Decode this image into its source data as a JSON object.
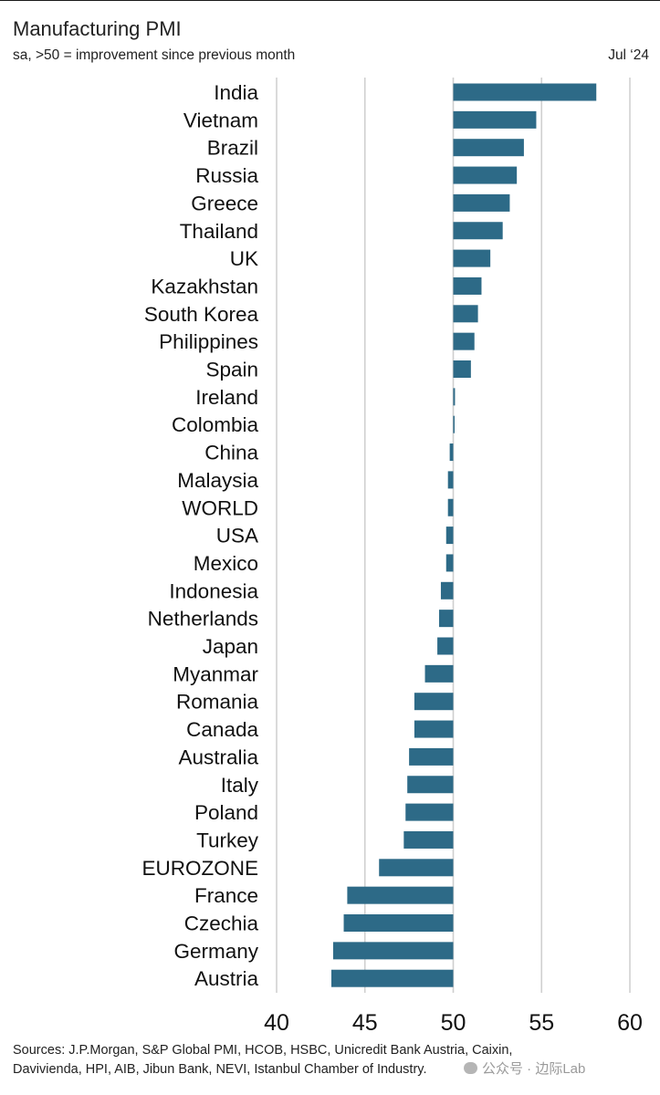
{
  "header": {
    "title": "Manufacturing PMI",
    "subtitle": "sa, >50 = improvement since previous month",
    "date": "Jul ‘24"
  },
  "footer": {
    "sources_line1": "Sources: J.P.Morgan, S&P Global PMI, HCOB, HSBC, Unicredit Bank Austria, Caixin,",
    "sources_line2": "Davivienda, HPI, AIB, Jibun Bank, NEVI, Istanbul Chamber of Industry.",
    "watermark": "公众号 · 边际Lab"
  },
  "colors": {
    "bar": "#2d6a87",
    "grid": "#d0d0d0",
    "baseline": "#cfcfcf"
  },
  "chart_data": {
    "type": "bar",
    "orientation": "horizontal",
    "title": "Manufacturing PMI",
    "subtitle": "sa, >50 = improvement since previous month",
    "baseline": 50,
    "xlim": [
      40,
      60
    ],
    "xticks": [
      40,
      45,
      50,
      55,
      60
    ],
    "xlabel": "",
    "ylabel": "",
    "grid": "vertical",
    "categories": [
      "India",
      "Vietnam",
      "Brazil",
      "Russia",
      "Greece",
      "Thailand",
      "UK",
      "Kazakhstan",
      "South Korea",
      "Philippines",
      "Spain",
      "Ireland",
      "Colombia",
      "China",
      "Malaysia",
      "WORLD",
      "USA",
      "Mexico",
      "Indonesia",
      "Netherlands",
      "Japan",
      "Myanmar",
      "Romania",
      "Canada",
      "Australia",
      "Italy",
      "Poland",
      "Turkey",
      "EUROZONE",
      "France",
      "Czechia",
      "Germany",
      "Austria"
    ],
    "values": [
      58.1,
      54.7,
      54.0,
      53.6,
      53.2,
      52.8,
      52.1,
      51.6,
      51.4,
      51.2,
      51.0,
      50.1,
      50.0,
      49.8,
      49.7,
      49.7,
      49.6,
      49.6,
      49.3,
      49.2,
      49.1,
      48.4,
      47.8,
      47.8,
      47.5,
      47.4,
      47.3,
      47.2,
      45.8,
      44.0,
      43.8,
      43.2,
      43.1
    ]
  }
}
